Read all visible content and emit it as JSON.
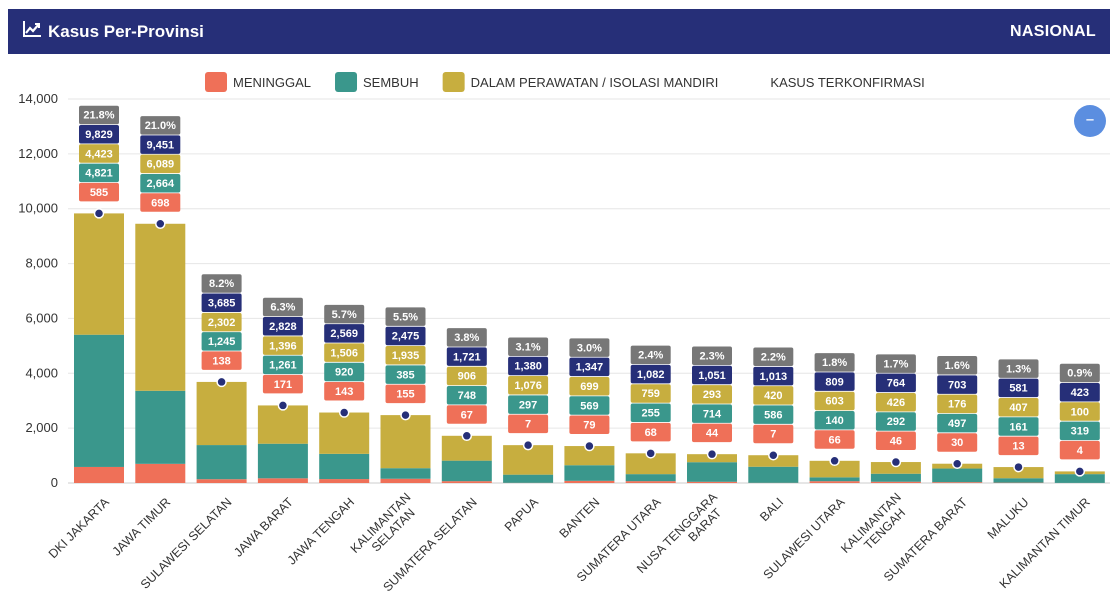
{
  "header": {
    "title": "Kasus Per-Provinsi",
    "scope_label": "NASIONAL",
    "icon": "line-chart-icon"
  },
  "legend": {
    "items": [
      {
        "label": "MENINGGAL",
        "color": "#ef7058"
      },
      {
        "label": "SEMBUH",
        "color": "#3a978c"
      },
      {
        "label": "DALAM PERAWATAN / ISOLASI MANDIRI",
        "color": "#c7ae3f"
      },
      {
        "label": "KASUS TERKONFIRMASI",
        "color": null
      }
    ]
  },
  "controls": {
    "collapse_icon": "minus-icon",
    "collapse_label": "–"
  },
  "chart_data": {
    "type": "bar",
    "stacked": true,
    "title": "",
    "xlabel": "",
    "ylabel": "",
    "ylim": [
      0,
      14000
    ],
    "yticks": [
      "0",
      "2,000",
      "4,000",
      "6,000",
      "8,000",
      "10,000",
      "12,000",
      "14,000"
    ],
    "grid": true,
    "legend_position": "top",
    "categories": [
      "DKI JAKARTA",
      "JAWA TIMUR",
      "SULAWESI SELATAN",
      "JAWA BARAT",
      "JAWA TENGAH",
      "KALIMANTAN SELATAN",
      "SUMATERA SELATAN",
      "PAPUA",
      "BANTEN",
      "SUMATERA UTARA",
      "NUSA TENGGARA BARAT",
      "BALI",
      "SULAWESI UTARA",
      "KALIMANTAN TENGAH",
      "SUMATERA BARAT",
      "MALUKU",
      "KALIMANTAN TIMUR"
    ],
    "category_lines": [
      [
        "DKI JAKARTA"
      ],
      [
        "JAWA TIMUR"
      ],
      [
        "SULAWESI SELATAN"
      ],
      [
        "JAWA BARAT"
      ],
      [
        "JAWA TENGAH"
      ],
      [
        "KALIMANTAN",
        "SELATAN"
      ],
      [
        "SUMATERA SELATAN"
      ],
      [
        "PAPUA"
      ],
      [
        "BANTEN"
      ],
      [
        "SUMATERA UTARA"
      ],
      [
        "NUSA TENGGARA",
        "BARAT"
      ],
      [
        "BALI"
      ],
      [
        "SULAWESI UTARA"
      ],
      [
        "KALIMANTAN",
        "TENGAH"
      ],
      [
        "SUMATERA BARAT"
      ],
      [
        "MALUKU"
      ],
      [
        "KALIMANTAN TIMUR"
      ]
    ],
    "series": [
      {
        "name": "MENINGGAL",
        "color": "#ef7058",
        "values": [
          585,
          698,
          138,
          171,
          143,
          155,
          67,
          7,
          79,
          68,
          44,
          7,
          66,
          46,
          30,
          13,
          4
        ]
      },
      {
        "name": "SEMBUH",
        "color": "#3a978c",
        "values": [
          4821,
          2664,
          1245,
          1261,
          920,
          385,
          748,
          297,
          569,
          255,
          714,
          586,
          140,
          292,
          497,
          161,
          319
        ]
      },
      {
        "name": "DALAM PERAWATAN / ISOLASI MANDIRI",
        "color": "#c7ae3f",
        "values": [
          4423,
          6089,
          2302,
          1396,
          1506,
          1935,
          906,
          1076,
          699,
          759,
          293,
          420,
          603,
          426,
          176,
          407,
          100
        ]
      }
    ],
    "confirmed": {
      "name": "KASUS TERKONFIRMASI",
      "color": "#262f78",
      "values": [
        9829,
        9451,
        3685,
        2828,
        2569,
        2475,
        1721,
        1380,
        1347,
        1082,
        1051,
        1013,
        809,
        764,
        703,
        581,
        423
      ]
    },
    "share": {
      "color": "#777777",
      "values": [
        "21.8%",
        "21.0%",
        "8.2%",
        "6.3%",
        "5.7%",
        "5.5%",
        "3.8%",
        "3.1%",
        "3.0%",
        "2.4%",
        "2.3%",
        "2.2%",
        "1.8%",
        "1.7%",
        "1.6%",
        "1.3%",
        "0.9%"
      ]
    }
  }
}
